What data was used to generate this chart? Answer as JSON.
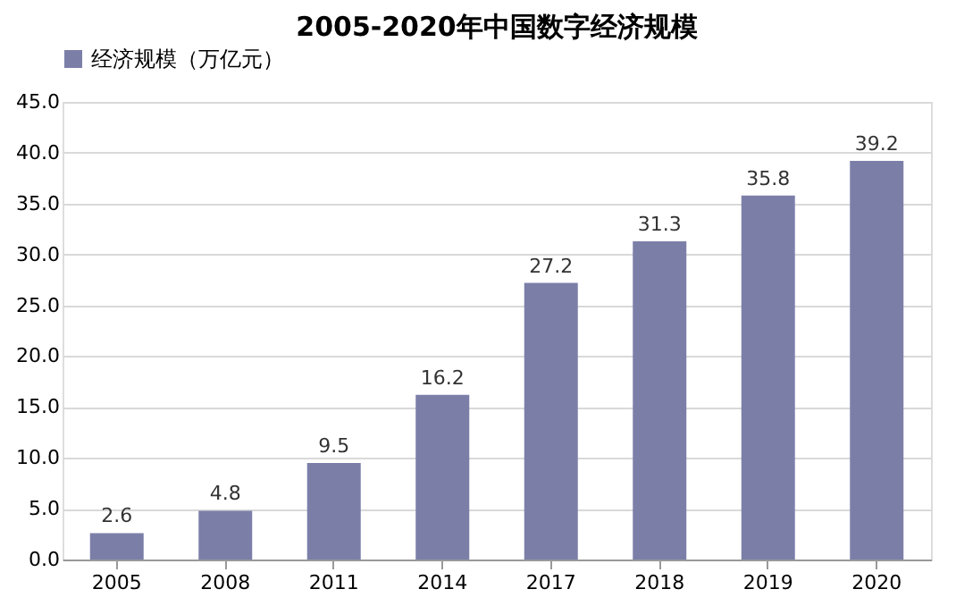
{
  "chart_data": {
    "type": "bar",
    "title": "2005-2020年中国数字经济规模",
    "categories": [
      "2005",
      "2008",
      "2011",
      "2014",
      "2017",
      "2018",
      "2019",
      "2020"
    ],
    "series": [
      {
        "name": "经济规模（万亿元）",
        "color": "#7b7fa8",
        "values": [
          2.6,
          4.8,
          9.5,
          16.2,
          27.2,
          31.3,
          35.8,
          39.2
        ]
      }
    ],
    "ylim": [
      0,
      45
    ],
    "yticks": [
      {
        "value": 0,
        "label": "0.0"
      },
      {
        "value": 5,
        "label": "5.0"
      },
      {
        "value": 10,
        "label": "10.0"
      },
      {
        "value": 15,
        "label": "15.0"
      },
      {
        "value": 20,
        "label": "20.0"
      },
      {
        "value": 25,
        "label": "25.0"
      },
      {
        "value": 30,
        "label": "30.0"
      },
      {
        "value": 35,
        "label": "35.0"
      },
      {
        "value": 40,
        "label": "40.0"
      },
      {
        "value": 45,
        "label": "45.0"
      }
    ],
    "grid": "y",
    "legend": "top",
    "data_labels": true
  }
}
